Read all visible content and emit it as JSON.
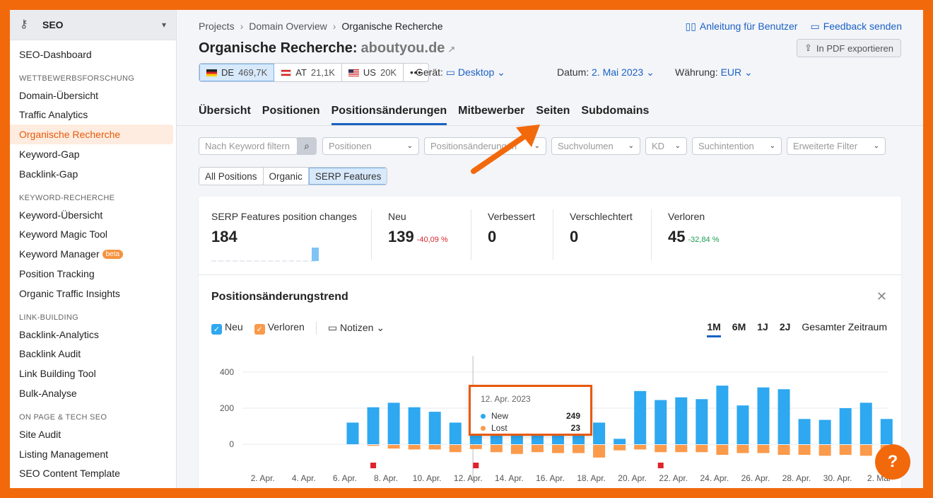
{
  "sidebar": {
    "title": "SEO",
    "items": [
      {
        "type": "item",
        "label": "SEO-Dashboard"
      },
      {
        "type": "section",
        "label": "WETTBEWERBSFORSCHUNG"
      },
      {
        "type": "item",
        "label": "Domain-Übersicht"
      },
      {
        "type": "item",
        "label": "Traffic Analytics"
      },
      {
        "type": "item",
        "label": "Organische Recherche",
        "active": true
      },
      {
        "type": "item",
        "label": "Keyword-Gap"
      },
      {
        "type": "item",
        "label": "Backlink-Gap"
      },
      {
        "type": "section",
        "label": "KEYWORD-RECHERCHE"
      },
      {
        "type": "item",
        "label": "Keyword-Übersicht"
      },
      {
        "type": "item",
        "label": "Keyword Magic Tool"
      },
      {
        "type": "item",
        "label": "Keyword Manager",
        "badge": "beta"
      },
      {
        "type": "item",
        "label": "Position Tracking"
      },
      {
        "type": "item",
        "label": "Organic Traffic Insights"
      },
      {
        "type": "section",
        "label": "LINK-BUILDING"
      },
      {
        "type": "item",
        "label": "Backlink-Analytics"
      },
      {
        "type": "item",
        "label": "Backlink Audit"
      },
      {
        "type": "item",
        "label": "Link Building Tool"
      },
      {
        "type": "item",
        "label": "Bulk-Analyse"
      },
      {
        "type": "section",
        "label": "ON PAGE & TECH SEO"
      },
      {
        "type": "item",
        "label": "Site Audit"
      },
      {
        "type": "item",
        "label": "Listing Management"
      },
      {
        "type": "item",
        "label": "SEO Content Template"
      }
    ]
  },
  "breadcrumb": {
    "items": [
      "Projects",
      "Domain Overview"
    ],
    "current": "Organische Recherche"
  },
  "toplinks": {
    "guide": "Anleitung für Benutzer",
    "feedback": "Feedback senden"
  },
  "header": {
    "title": "Organische Recherche:",
    "domain": "aboutyou.de",
    "pdf_label": "In PDF exportieren"
  },
  "databases": [
    {
      "code": "DE",
      "value": "469,7K",
      "selected": true
    },
    {
      "code": "AT",
      "value": "21,1K"
    },
    {
      "code": "US",
      "value": "20K"
    }
  ],
  "filters": {
    "device_label": "Gerät:",
    "device": "Desktop",
    "date_label": "Datum:",
    "date": "2. Mai 2023",
    "currency_label": "Währung:",
    "currency": "EUR"
  },
  "tabs": [
    "Übersicht",
    "Positionen",
    "Positionsänderungen",
    "Mitbewerber",
    "Seiten",
    "Subdomains"
  ],
  "active_tab": "Positionsänderungen",
  "filterbar": {
    "keyword_placeholder": "Nach Keyword filtern",
    "dropdowns": [
      "Positionen",
      "Positionsänderungen",
      "Suchvolumen",
      "KD",
      "Suchintention",
      "Erweiterte Filter"
    ]
  },
  "segments": [
    "All Positions",
    "Organic",
    "SERP Features"
  ],
  "kpis": [
    {
      "label": "SERP Features position changes",
      "value": "184"
    },
    {
      "label": "Neu",
      "value": "139",
      "delta": "-40,09 %"
    },
    {
      "label": "Verbessert",
      "value": "0"
    },
    {
      "label": "Verschlechtert",
      "value": "0"
    },
    {
      "label": "Verloren",
      "value": "45",
      "delta": "-32,84 %"
    }
  ],
  "trend": {
    "title": "Positionsänderungstrend",
    "legend": {
      "new": "Neu",
      "lost": "Verloren",
      "notes": "Notizen"
    },
    "ranges": [
      "1M",
      "6M",
      "1J",
      "2J",
      "Gesamter Zeitraum"
    ],
    "active_range": "1M"
  },
  "tooltip": {
    "date": "12. Apr. 2023",
    "new_label": "New",
    "new_value": "249",
    "lost_label": "Lost",
    "lost_value": "23"
  },
  "colors": {
    "new": "#2ea8f0",
    "lost": "#fb9a4b",
    "accent": "#1a61c2",
    "highlight": "#e8590c"
  },
  "chart_data": {
    "type": "bar",
    "y_ticks": [
      "400",
      "200",
      "0"
    ],
    "ylim": [
      -100,
      420
    ],
    "x_tick_labels": [
      "2. Apr.",
      "4. Apr.",
      "6. Apr.",
      "8. Apr.",
      "10. Apr.",
      "12. Apr.",
      "14. Apr.",
      "16. Apr.",
      "18. Apr.",
      "20. Apr.",
      "22. Apr.",
      "24. Apr.",
      "26. Apr.",
      "28. Apr.",
      "30. Apr.",
      "2. Mai"
    ],
    "series": [
      {
        "name": "New",
        "values": [
          0,
          0,
          0,
          0,
          0,
          120,
          205,
          230,
          205,
          180,
          120,
          249,
          155,
          150,
          165,
          170,
          175,
          120,
          30,
          295,
          245,
          260,
          250,
          325,
          215,
          315,
          305,
          140,
          135,
          200,
          230,
          140
        ]
      },
      {
        "name": "Lost",
        "values": [
          0,
          0,
          0,
          0,
          0,
          0,
          -5,
          -20,
          -25,
          -25,
          -40,
          -23,
          -40,
          -50,
          -40,
          -45,
          -45,
          -70,
          -30,
          -25,
          -40,
          -40,
          -40,
          -55,
          -45,
          -45,
          -55,
          -55,
          -60,
          -55,
          -60,
          -60
        ]
      }
    ],
    "notes_at_days": [
      6,
      11,
      20
    ]
  }
}
